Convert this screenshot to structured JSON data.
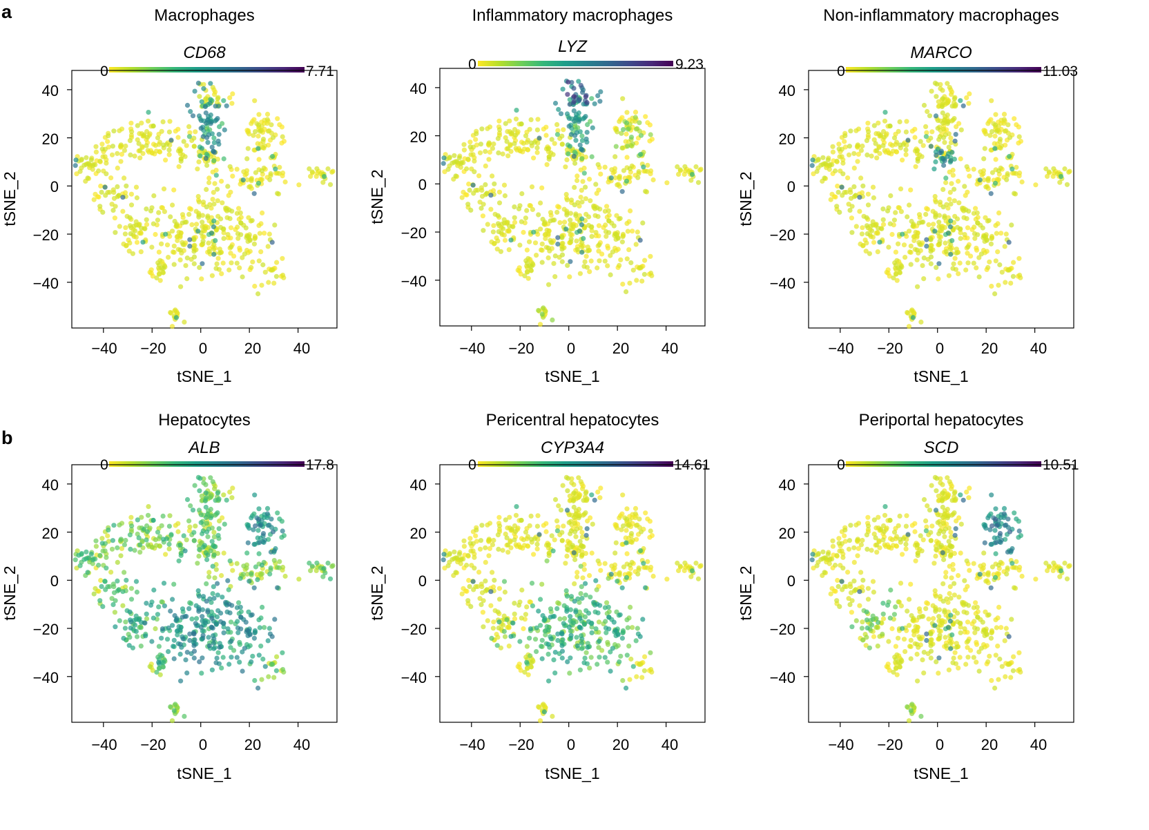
{
  "row_labels": {
    "a": "a",
    "b": "b"
  },
  "colormap": [
    "#fde725",
    "#b5de2b",
    "#6ece58",
    "#35b779",
    "#1f9e89",
    "#26828e",
    "#31688e",
    "#3e4989",
    "#482878",
    "#440154"
  ],
  "chart_data": [
    {
      "type": "scatter",
      "title": "Macrophages",
      "gene": "CD68",
      "cbar_min": "0",
      "cbar_max": "7.71",
      "xlabel": "tSNE_1",
      "ylabel": "tSNE_2",
      "xlim": [
        -53,
        56
      ],
      "ylim": [
        -59,
        48
      ],
      "xticks": [
        "-40",
        "-20",
        "0",
        "20",
        "40"
      ],
      "xtick_values": [
        -40,
        -20,
        0,
        20,
        40
      ],
      "yticks": [
        "40",
        "20",
        "0",
        "-20",
        "-40"
      ],
      "ytick_values": [
        40,
        20,
        0,
        -20,
        -40
      ],
      "expression": {
        "top_center": 0.45,
        "top_right": 0.08,
        "big_center": 0.03,
        "left_big": 0.02,
        "left_lower": 0.04,
        "bottom_small": 0.06,
        "base": 0.03
      }
    },
    {
      "type": "scatter",
      "title": "Inflammatory macrophages",
      "gene": "LYZ",
      "cbar_min": "0",
      "cbar_max": "9.23",
      "xlabel": "tSNE_1",
      "ylabel": "tSNE_2",
      "xlim": [
        -53,
        56
      ],
      "ylim": [
        -59,
        48
      ],
      "xticks": [
        "-40",
        "-20",
        "0",
        "20",
        "40"
      ],
      "xtick_values": [
        -40,
        -20,
        0,
        20,
        40
      ],
      "yticks": [
        "40",
        "20",
        "0",
        "-20",
        "-40"
      ],
      "ytick_values": [
        40,
        20,
        0,
        -20,
        -40
      ],
      "expression": {
        "top_center_upper": 0.7,
        "top_center": 0.4,
        "top_right": 0.1,
        "big_center": 0.03,
        "left_big": 0.02,
        "left_lower": 0.03,
        "bottom_small": 0.1,
        "base": 0.03
      }
    },
    {
      "type": "scatter",
      "title": "Non-inflammatory macrophages",
      "gene": "MARCO",
      "cbar_min": "0",
      "cbar_max": "11.03",
      "xlabel": "tSNE_1",
      "ylabel": "tSNE_2",
      "xlim": [
        -53,
        56
      ],
      "ylim": [
        -59,
        48
      ],
      "xticks": [
        "-40",
        "-20",
        "0",
        "20",
        "40"
      ],
      "xtick_values": [
        -40,
        -20,
        0,
        20,
        40
      ],
      "yticks": [
        "40",
        "20",
        "0",
        "-20",
        "-40"
      ],
      "ytick_values": [
        40,
        20,
        0,
        -20,
        -40
      ],
      "expression": {
        "top_center_lower": 0.45,
        "top_center": 0.06,
        "top_right": 0.03,
        "big_center": 0.02,
        "left_big": 0.02,
        "left_lower": 0.02,
        "bottom_small": 0.03,
        "base": 0.02
      }
    },
    {
      "type": "scatter",
      "title": "Hepatocytes",
      "gene": "ALB",
      "cbar_min": "0",
      "cbar_max": "17.8",
      "xlabel": "tSNE_1",
      "ylabel": "tSNE_2",
      "xlim": [
        -53,
        56
      ],
      "ylim": [
        -59,
        48
      ],
      "xticks": [
        "-40",
        "-20",
        "0",
        "20",
        "40"
      ],
      "xtick_values": [
        -40,
        -20,
        0,
        20,
        40
      ],
      "yticks": [
        "40",
        "20",
        "0",
        "-20",
        "-40"
      ],
      "ytick_values": [
        40,
        20,
        0,
        -20,
        -40
      ],
      "expression": {
        "big_center": 0.45,
        "top_right": 0.5,
        "top_center": 0.2,
        "left_big": 0.2,
        "left_lower": 0.3,
        "bottom_small": 0.2,
        "base": 0.2
      }
    },
    {
      "type": "scatter",
      "title": "Pericentral hepatocytes",
      "gene": "CYP3A4",
      "cbar_min": "0",
      "cbar_max": "14.61",
      "xlabel": "tSNE_1",
      "ylabel": "tSNE_2",
      "xlim": [
        -53,
        56
      ],
      "ylim": [
        -59,
        48
      ],
      "xticks": [
        "-40",
        "-20",
        "0",
        "20",
        "40"
      ],
      "xtick_values": [
        -40,
        -20,
        0,
        20,
        40
      ],
      "yticks": [
        "40",
        "20",
        "0",
        "-20",
        "-40"
      ],
      "ytick_values": [
        40,
        20,
        0,
        -20,
        -40
      ],
      "expression": {
        "big_center": 0.3,
        "top_right": 0.03,
        "top_center": 0.03,
        "left_big": 0.02,
        "left_lower": 0.05,
        "bottom_small": 0.08,
        "base": 0.03
      }
    },
    {
      "type": "scatter",
      "title": "Periportal hepatocytes",
      "gene": "SCD",
      "cbar_min": "0",
      "cbar_max": "10.51",
      "xlabel": "tSNE_1",
      "ylabel": "tSNE_2",
      "xlim": [
        -53,
        56
      ],
      "ylim": [
        -59,
        48
      ],
      "xticks": [
        "-40",
        "-20",
        "0",
        "20",
        "40"
      ],
      "xtick_values": [
        -40,
        -20,
        0,
        20,
        40
      ],
      "yticks": [
        "40",
        "20",
        "0",
        "-20",
        "-40"
      ],
      "ytick_values": [
        40,
        20,
        0,
        -20,
        -40
      ],
      "expression": {
        "top_right": 0.55,
        "big_center": 0.06,
        "top_center": 0.08,
        "left_big": 0.05,
        "left_lower": 0.15,
        "bottom_small": 0.15,
        "base": 0.05
      }
    }
  ]
}
